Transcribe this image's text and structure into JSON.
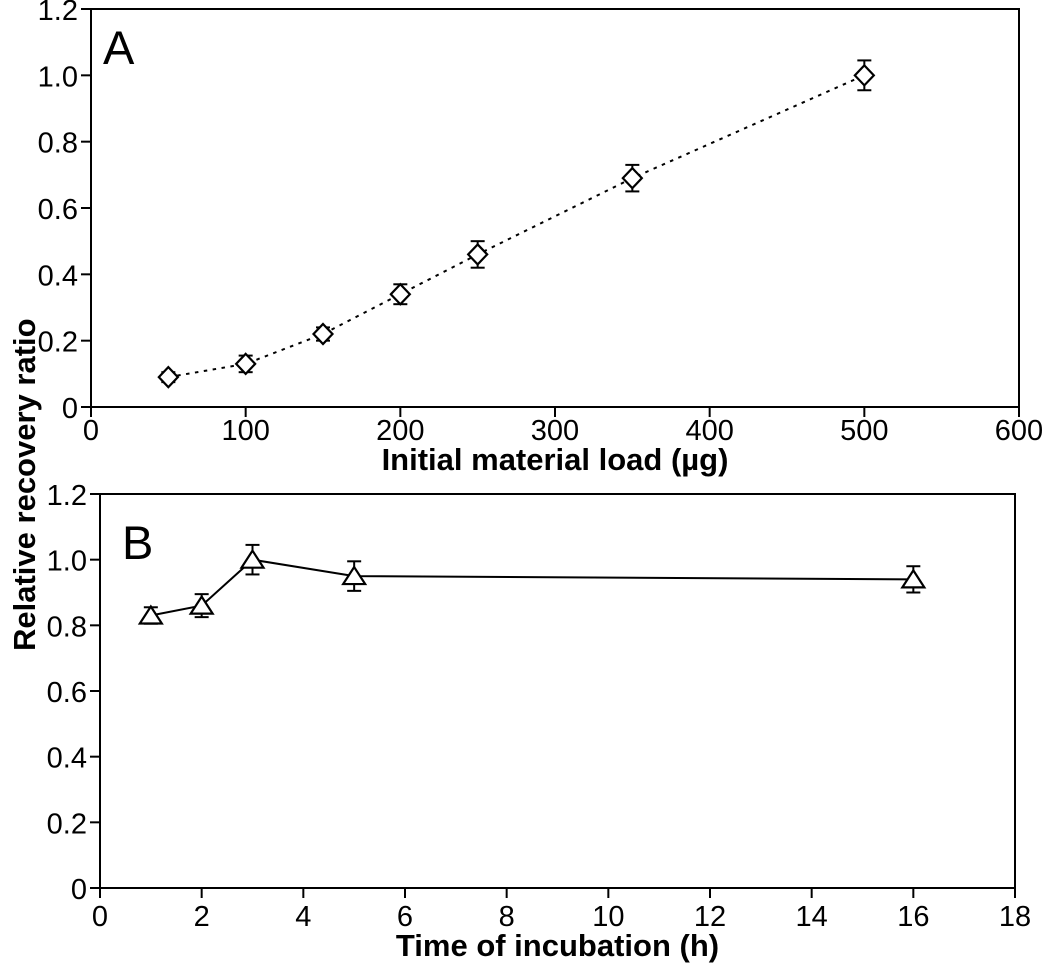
{
  "figure": {
    "y_axis_label": "Relative recovery ratio",
    "background_color": "#ffffff",
    "ink_color": "#000000"
  },
  "chart_data": [
    {
      "type": "line",
      "panel_label": "A",
      "marker": "diamond",
      "line_style": "dotted",
      "xlabel": "Initial material load (µg)",
      "ylabel": "Relative recovery ratio",
      "xlim": [
        0,
        600
      ],
      "ylim": [
        0,
        1.2
      ],
      "x_ticks": [
        0,
        100,
        200,
        300,
        400,
        500,
        600
      ],
      "y_tick_labels": [
        "1.2",
        "1.0",
        "0.8",
        "0.6",
        "0.4",
        "0.2",
        "0"
      ],
      "grid": false,
      "legend": "none",
      "x": [
        50,
        100,
        150,
        200,
        250,
        350,
        500
      ],
      "y": [
        0.09,
        0.13,
        0.22,
        0.34,
        0.46,
        0.69,
        1.0
      ],
      "y_err": [
        0.015,
        0.025,
        0.02,
        0.03,
        0.04,
        0.04,
        0.045
      ]
    },
    {
      "type": "line",
      "panel_label": "B",
      "marker": "triangle",
      "line_style": "solid",
      "xlabel": "Time of incubation (h)",
      "ylabel": "Relative recovery ratio",
      "xlim": [
        0,
        18
      ],
      "ylim": [
        0,
        1.2
      ],
      "x_ticks": [
        0,
        2,
        4,
        6,
        8,
        10,
        12,
        14,
        16,
        18
      ],
      "y_tick_labels": [
        "1.2",
        "1.0",
        "0.8",
        "0.6",
        "0.4",
        "0.2",
        "0"
      ],
      "grid": false,
      "legend": "none",
      "x": [
        1,
        2,
        3,
        5,
        16
      ],
      "y": [
        0.83,
        0.86,
        1.0,
        0.95,
        0.94
      ],
      "y_err": [
        0.025,
        0.035,
        0.045,
        0.045,
        0.04
      ]
    }
  ]
}
